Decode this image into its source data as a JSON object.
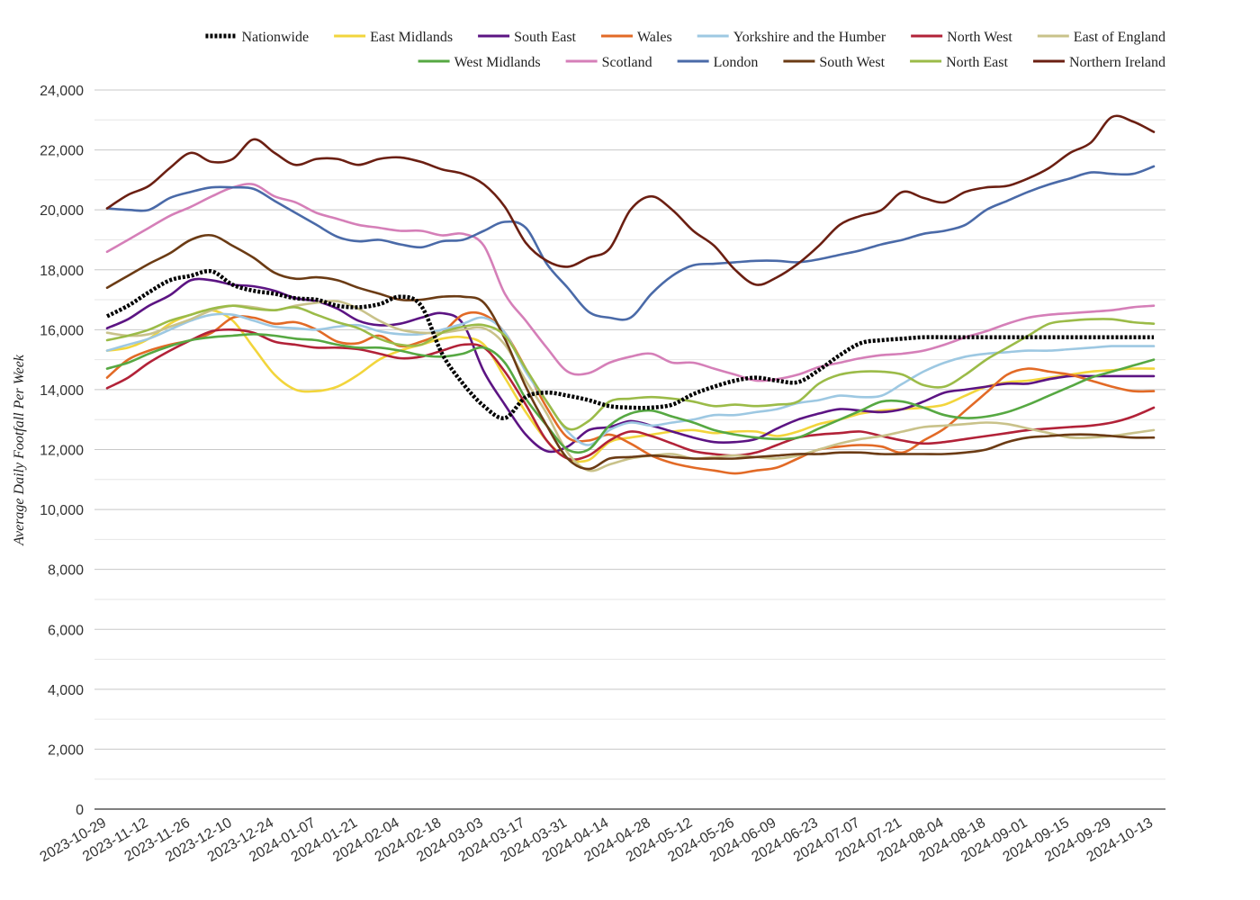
{
  "chart_data": {
    "type": "line",
    "title": "",
    "xlabel": "",
    "ylabel": "Average Daily Footfall Per Week",
    "ylim": [
      0,
      24000
    ],
    "yticks": [
      0,
      2000,
      4000,
      6000,
      8000,
      10000,
      12000,
      14000,
      16000,
      18000,
      20000,
      22000,
      24000
    ],
    "ytick_labels": [
      "0",
      "2,000",
      "4,000",
      "6,000",
      "8,000",
      "10,000",
      "12,000",
      "14,000",
      "16,000",
      "18,000",
      "20,000",
      "22,000",
      "24,000"
    ],
    "grid": true,
    "legend_position": "top",
    "x": [
      "2023-10-29",
      "2023-11-05",
      "2023-11-12",
      "2023-11-19",
      "2023-11-26",
      "2023-12-03",
      "2023-12-10",
      "2023-12-17",
      "2023-12-24",
      "2023-12-31",
      "2024-01-07",
      "2024-01-14",
      "2024-01-21",
      "2024-01-28",
      "2024-02-04",
      "2024-02-11",
      "2024-02-18",
      "2024-02-25",
      "2024-03-03",
      "2024-03-10",
      "2024-03-17",
      "2024-03-24",
      "2024-03-31",
      "2024-04-07",
      "2024-04-14",
      "2024-04-21",
      "2024-04-28",
      "2024-05-05",
      "2024-05-12",
      "2024-05-19",
      "2024-05-26",
      "2024-06-02",
      "2024-06-09",
      "2024-06-16",
      "2024-06-23",
      "2024-06-30",
      "2024-07-07",
      "2024-07-14",
      "2024-07-21",
      "2024-07-28",
      "2024-08-04",
      "2024-08-11",
      "2024-08-18",
      "2024-08-25",
      "2024-09-01",
      "2024-09-08",
      "2024-09-15",
      "2024-09-22",
      "2024-09-29",
      "2024-10-06",
      "2024-10-13"
    ],
    "x_tick_labels": [
      "2023-10-29",
      "2023-11-12",
      "2023-11-26",
      "2023-12-10",
      "2023-12-24",
      "2024-01-07",
      "2024-01-21",
      "2024-02-04",
      "2024-02-18",
      "2024-03-03",
      "2024-03-17",
      "2024-03-31",
      "2024-04-14",
      "2024-04-28",
      "2024-05-12",
      "2024-05-26",
      "2024-06-09",
      "2024-06-23",
      "2024-07-07",
      "2024-07-21",
      "2024-08-04",
      "2024-08-18",
      "2024-09-01",
      "2024-09-15",
      "2024-09-29",
      "2024-10-13"
    ],
    "series": [
      {
        "name": "Nationwide",
        "color": "#000000",
        "dashed": true,
        "values": [
          16450,
          16800,
          17250,
          17650,
          17800,
          17950,
          17500,
          17300,
          17200,
          17050,
          17000,
          16800,
          16750,
          16850,
          17100,
          16800,
          15200,
          14200,
          13450,
          13050,
          13750,
          13900,
          13800,
          13650,
          13450,
          13400,
          13400,
          13500,
          13850,
          14100,
          14300,
          14400,
          14300,
          14250,
          14650,
          15150,
          15550,
          15650,
          15700,
          15750,
          15750,
          15750,
          15750,
          15750,
          15750,
          15750,
          15750,
          15750,
          15750,
          15750,
          15750
        ]
      },
      {
        "name": "East Midlands",
        "color": "#f2d53c",
        "dashed": false,
        "values": [
          15300,
          15400,
          15700,
          16200,
          16500,
          16650,
          16300,
          15400,
          14500,
          14000,
          13950,
          14100,
          14500,
          15000,
          15300,
          15500,
          15700,
          15750,
          15500,
          14400,
          13250,
          12300,
          11700,
          11650,
          12250,
          12400,
          12500,
          12600,
          12650,
          12550,
          12600,
          12600,
          12450,
          12600,
          12850,
          13000,
          13200,
          13300,
          13350,
          13400,
          13500,
          13800,
          14100,
          14250,
          14300,
          14400,
          14500,
          14600,
          14650,
          14700,
          14700
        ]
      },
      {
        "name": "South East",
        "color": "#5c1483",
        "dashed": false,
        "values": [
          16050,
          16350,
          16800,
          17150,
          17650,
          17650,
          17500,
          17450,
          17300,
          17050,
          16950,
          16700,
          16300,
          16150,
          16200,
          16400,
          16550,
          16200,
          14600,
          13500,
          12500,
          11950,
          12100,
          12650,
          12750,
          12950,
          12800,
          12600,
          12400,
          12250,
          12250,
          12350,
          12700,
          13000,
          13200,
          13350,
          13300,
          13250,
          13350,
          13600,
          13900,
          14000,
          14100,
          14200,
          14200,
          14350,
          14450,
          14450,
          14450,
          14450,
          14450
        ]
      },
      {
        "name": "Wales",
        "color": "#e26a26",
        "dashed": false,
        "values": [
          14400,
          15000,
          15300,
          15500,
          15650,
          15900,
          16400,
          16400,
          16200,
          16250,
          16000,
          15600,
          15550,
          15800,
          15450,
          15600,
          15900,
          16500,
          16500,
          15900,
          14700,
          13400,
          12400,
          12300,
          12500,
          12200,
          11800,
          11550,
          11400,
          11300,
          11200,
          11300,
          11400,
          11700,
          12000,
          12100,
          12150,
          12100,
          11900,
          12300,
          12700,
          13300,
          13900,
          14500,
          14700,
          14600,
          14500,
          14300,
          14100,
          13950,
          13950
        ]
      },
      {
        "name": "Yorkshire and the Humber",
        "color": "#9dc8e2",
        "dashed": false,
        "values": [
          15300,
          15500,
          15700,
          16000,
          16300,
          16500,
          16500,
          16300,
          16100,
          16050,
          16000,
          16100,
          16150,
          15950,
          15850,
          15850,
          16000,
          16200,
          16400,
          15900,
          14600,
          13600,
          12600,
          12150,
          12650,
          12900,
          12800,
          12900,
          13000,
          13150,
          13150,
          13250,
          13350,
          13550,
          13650,
          13800,
          13750,
          13800,
          14200,
          14600,
          14900,
          15100,
          15200,
          15250,
          15300,
          15300,
          15350,
          15400,
          15450,
          15450,
          15450
        ]
      },
      {
        "name": "North West",
        "color": "#b22238",
        "dashed": false,
        "values": [
          14050,
          14400,
          14900,
          15300,
          15650,
          15950,
          16000,
          15900,
          15600,
          15500,
          15400,
          15400,
          15350,
          15200,
          15050,
          15100,
          15300,
          15500,
          15400,
          14600,
          13500,
          12300,
          11700,
          11800,
          12300,
          12600,
          12450,
          12200,
          11950,
          11850,
          11800,
          11900,
          12150,
          12400,
          12500,
          12550,
          12600,
          12450,
          12300,
          12200,
          12250,
          12350,
          12450,
          12550,
          12650,
          12700,
          12750,
          12800,
          12900,
          13100,
          13400
        ]
      },
      {
        "name": "East of England",
        "color": "#c9c28a",
        "dashed": false,
        "values": [
          15900,
          15800,
          15850,
          16100,
          16350,
          16650,
          16800,
          16750,
          16650,
          16800,
          16900,
          16950,
          16700,
          16300,
          16000,
          15900,
          15900,
          16000,
          16050,
          15500,
          14300,
          13200,
          11900,
          11300,
          11500,
          11700,
          11800,
          11850,
          11700,
          11750,
          11800,
          11750,
          11700,
          11800,
          12000,
          12200,
          12350,
          12450,
          12600,
          12750,
          12800,
          12850,
          12900,
          12850,
          12700,
          12550,
          12400,
          12400,
          12450,
          12550,
          12650
        ]
      },
      {
        "name": "West Midlands",
        "color": "#56a842",
        "dashed": false,
        "values": [
          14700,
          14900,
          15200,
          15450,
          15650,
          15750,
          15800,
          15850,
          15800,
          15700,
          15650,
          15500,
          15400,
          15400,
          15300,
          15150,
          15100,
          15200,
          15400,
          14900,
          13700,
          12800,
          12000,
          12000,
          12800,
          13200,
          13300,
          13100,
          12900,
          12650,
          12500,
          12400,
          12350,
          12400,
          12700,
          13000,
          13300,
          13600,
          13600,
          13400,
          13150,
          13050,
          13100,
          13250,
          13500,
          13800,
          14100,
          14400,
          14600,
          14800,
          15000
        ]
      },
      {
        "name": "Scotland",
        "color": "#d57fb8",
        "dashed": false,
        "values": [
          18600,
          19000,
          19400,
          19800,
          20100,
          20450,
          20750,
          20850,
          20450,
          20250,
          19900,
          19700,
          19500,
          19400,
          19300,
          19300,
          19150,
          19200,
          18800,
          17200,
          16300,
          15400,
          14600,
          14550,
          14900,
          15100,
          15200,
          14900,
          14900,
          14700,
          14500,
          14300,
          14350,
          14500,
          14750,
          14900,
          15050,
          15150,
          15200,
          15300,
          15500,
          15750,
          15950,
          16200,
          16400,
          16500,
          16550,
          16600,
          16650,
          16750,
          16800
        ]
      },
      {
        "name": "London",
        "color": "#4a6aa8",
        "dashed": false,
        "values": [
          20050,
          20000,
          20000,
          20400,
          20600,
          20750,
          20750,
          20700,
          20300,
          19900,
          19500,
          19100,
          18950,
          19000,
          18850,
          18750,
          18950,
          19000,
          19300,
          19600,
          19400,
          18200,
          17400,
          16600,
          16400,
          16400,
          17200,
          17800,
          18150,
          18200,
          18250,
          18300,
          18300,
          18250,
          18350,
          18500,
          18650,
          18850,
          19000,
          19200,
          19300,
          19500,
          20000,
          20300,
          20600,
          20850,
          21050,
          21250,
          21200,
          21200,
          21450
        ]
      },
      {
        "name": "South West",
        "color": "#6b3b14",
        "dashed": false,
        "values": [
          17400,
          17800,
          18200,
          18550,
          19000,
          19150,
          18800,
          18400,
          17900,
          17700,
          17750,
          17650,
          17400,
          17200,
          17000,
          17000,
          17100,
          17100,
          16900,
          15700,
          14100,
          12800,
          11700,
          11350,
          11700,
          11750,
          11800,
          11750,
          11700,
          11700,
          11700,
          11750,
          11800,
          11850,
          11850,
          11900,
          11900,
          11850,
          11850,
          11850,
          11850,
          11900,
          12000,
          12250,
          12400,
          12450,
          12500,
          12500,
          12450,
          12400,
          12400
        ]
      },
      {
        "name": "North East",
        "color": "#9bbb48",
        "dashed": false,
        "values": [
          15650,
          15800,
          16000,
          16300,
          16500,
          16700,
          16800,
          16700,
          16650,
          16750,
          16500,
          16250,
          16050,
          15700,
          15500,
          15500,
          15900,
          16100,
          16150,
          15800,
          14700,
          13600,
          12700,
          12950,
          13600,
          13700,
          13750,
          13700,
          13600,
          13450,
          13500,
          13450,
          13500,
          13600,
          14200,
          14500,
          14600,
          14600,
          14500,
          14150,
          14100,
          14500,
          15000,
          15400,
          15800,
          16200,
          16300,
          16350,
          16350,
          16250,
          16200
        ]
      },
      {
        "name": "Northern Ireland",
        "color": "#6b1f12",
        "dashed": false,
        "values": [
          20050,
          20500,
          20800,
          21400,
          21900,
          21600,
          21700,
          22350,
          21900,
          21500,
          21700,
          21700,
          21500,
          21700,
          21750,
          21600,
          21350,
          21200,
          20850,
          20100,
          18900,
          18300,
          18100,
          18400,
          18700,
          20000,
          20450,
          20000,
          19300,
          18800,
          18000,
          17500,
          17750,
          18200,
          18800,
          19500,
          19800,
          20000,
          20600,
          20400,
          20250,
          20600,
          20750,
          20800,
          21050,
          21400,
          21900,
          22250,
          23100,
          22950,
          22600
        ]
      }
    ]
  }
}
